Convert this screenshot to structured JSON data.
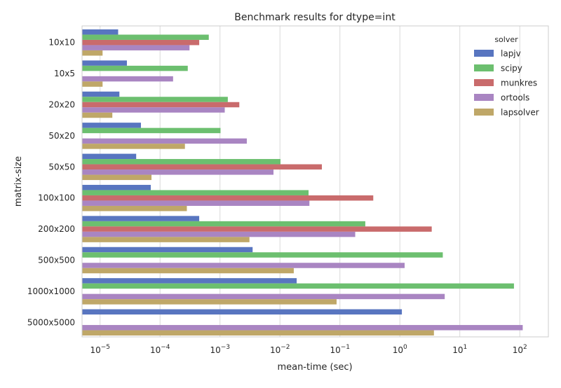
{
  "chart_data": {
    "type": "bar",
    "orientation": "horizontal",
    "title": "Benchmark results for dtype=int",
    "xlabel": "mean-time (sec)",
    "ylabel": "matrix-size",
    "x_scale": "log",
    "xlim": [
      5e-06,
      300
    ],
    "x_ticks": [
      {
        "value": 1e-05,
        "base": "10",
        "exp": "−5"
      },
      {
        "value": 0.0001,
        "base": "10",
        "exp": "−4"
      },
      {
        "value": 0.001,
        "base": "10",
        "exp": "−3"
      },
      {
        "value": 0.01,
        "base": "10",
        "exp": "−2"
      },
      {
        "value": 0.1,
        "base": "10",
        "exp": "−1"
      },
      {
        "value": 1,
        "base": "10",
        "exp": "0"
      },
      {
        "value": 10,
        "base": "10",
        "exp": "1"
      },
      {
        "value": 100,
        "base": "10",
        "exp": "2"
      }
    ],
    "grid": true,
    "legend": {
      "title": "solver",
      "position": "top-right"
    },
    "categories": [
      "10x10",
      "10x5",
      "20x20",
      "50x20",
      "50x50",
      "100x100",
      "200x200",
      "500x500",
      "1000x1000",
      "5000x5000"
    ],
    "series": [
      {
        "name": "lapjv",
        "color": "#5875c0",
        "values": [
          2e-05,
          2.8e-05,
          2.1e-05,
          4.8e-05,
          4e-05,
          7e-05,
          0.00045,
          0.0035,
          0.019,
          1.08
        ]
      },
      {
        "name": "scipy",
        "color": "#6cbf6f",
        "values": [
          0.00065,
          0.00029,
          0.00135,
          0.00102,
          0.0102,
          0.03,
          0.265,
          5.2,
          80,
          null
        ]
      },
      {
        "name": "munkres",
        "color": "#c96b6c",
        "values": [
          0.00045,
          null,
          0.0021,
          null,
          0.05,
          0.36,
          3.4,
          null,
          null,
          null
        ]
      },
      {
        "name": "ortools",
        "color": "#a985c2",
        "values": [
          0.00031,
          0.000165,
          0.0012,
          0.0028,
          0.0078,
          0.031,
          0.18,
          1.2,
          5.6,
          112
        ]
      },
      {
        "name": "lapsolver",
        "color": "#bfa768",
        "values": [
          1.1e-05,
          1.1e-05,
          1.6e-05,
          0.00026,
          7.2e-05,
          0.00028,
          0.0031,
          0.017,
          0.088,
          3.7
        ]
      }
    ]
  }
}
